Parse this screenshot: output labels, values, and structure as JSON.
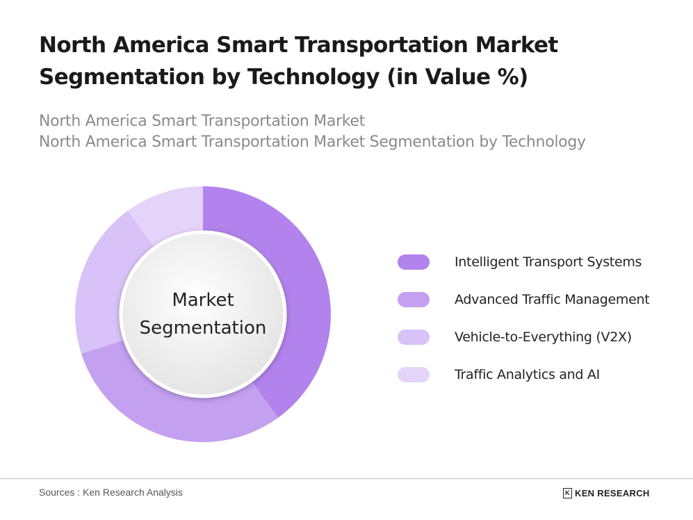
{
  "title": "North America Smart Transportation Market Segmentation by Technology (in Value %)",
  "subtitle_1": "North America Smart Transportation Market",
  "subtitle_2": "North America Smart Transportation Market Segmentation by Technology",
  "chart_data": {
    "type": "donut",
    "center_label_line1": "Market",
    "center_label_line2": "Segmentation",
    "categories": [
      "Intelligent Transport Systems",
      "Advanced Traffic Management",
      "Vehicle-to-Everything (V2X)",
      "Traffic Analytics and AI"
    ],
    "values": [
      40,
      30,
      20,
      10
    ],
    "colors": [
      "#b283ec",
      "#c3a0f0",
      "#d8c2f7",
      "#e4d4f9"
    ],
    "legend_placement": "right"
  },
  "footer": {
    "source": "Sources : Ken Research Analysis",
    "logo_text": "KEN RESEARCH"
  }
}
